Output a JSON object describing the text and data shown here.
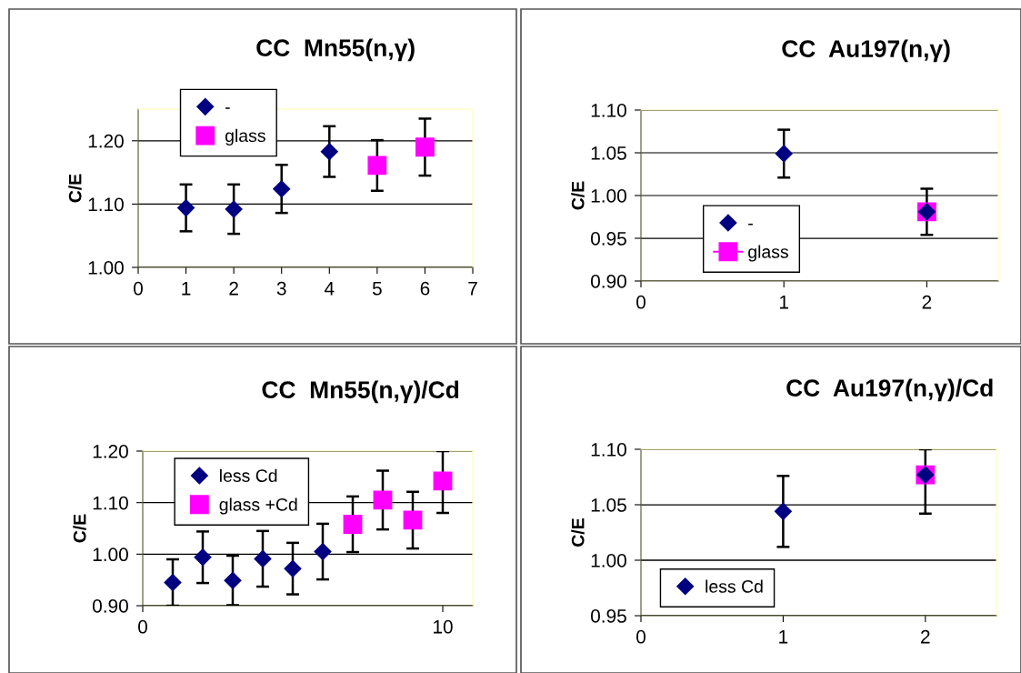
{
  "chart_data": [
    {
      "type": "scatter",
      "title": "CC  Mn55(n,γ)",
      "ylabel": "C/E",
      "xlim": [
        0,
        7
      ],
      "xticks": [
        0,
        1,
        2,
        3,
        4,
        5,
        6,
        7
      ],
      "ylim": [
        1.0,
        1.25
      ],
      "yticks": [
        {
          "value": 1.0,
          "label": "1.00"
        },
        {
          "value": 1.1,
          "label": "1.10"
        },
        {
          "value": 1.2,
          "label": "1.20"
        }
      ],
      "grid": "y",
      "legend": "top left",
      "series": [
        {
          "name": "-",
          "color": "#000080",
          "marker": "diamond",
          "x": [
            1,
            2,
            3,
            4
          ],
          "values": [
            1.094,
            1.092,
            1.124,
            1.183
          ],
          "errors": [
            0.037,
            0.039,
            0.038,
            0.04
          ]
        },
        {
          "name": "glass",
          "color": "#ff00ff",
          "marker": "square",
          "x": [
            5,
            6
          ],
          "values": [
            1.161,
            1.19
          ],
          "errors": [
            0.04,
            0.045
          ]
        }
      ]
    },
    {
      "type": "scatter",
      "title": "CC  Au197(n,γ)",
      "ylabel": "C/E",
      "xlim": [
        0,
        2.5
      ],
      "xticks": [
        0,
        1,
        2
      ],
      "ylim": [
        0.9,
        1.1
      ],
      "yticks": [
        {
          "value": 0.9,
          "label": "0.90"
        },
        {
          "value": 0.95,
          "label": "0.95"
        },
        {
          "value": 1.0,
          "label": "1.00"
        },
        {
          "value": 1.05,
          "label": "1.05"
        },
        {
          "value": 1.1,
          "label": "1.10"
        }
      ],
      "grid": "y",
      "legend": "bottom left",
      "series": [
        {
          "name": "-",
          "color": "#000080",
          "marker": "diamond",
          "x": [
            1,
            2
          ],
          "values": [
            1.049,
            0.981
          ],
          "errors": [
            0.028,
            0.027
          ]
        },
        {
          "name": "glass",
          "color": "#ff00ff",
          "marker": "square",
          "line_style": "solid",
          "x": [
            2
          ],
          "values": [
            0.981
          ]
        }
      ]
    },
    {
      "type": "scatter",
      "title": "CC  Mn55(n,γ)/Cd",
      "ylabel": "C/E",
      "xlim": [
        0,
        11
      ],
      "xticks": [
        0,
        10
      ],
      "ylim": [
        0.9,
        1.2
      ],
      "yticks": [
        {
          "value": 0.9,
          "label": "0.90"
        },
        {
          "value": 1.0,
          "label": "1.00"
        },
        {
          "value": 1.1,
          "label": "1.10"
        },
        {
          "value": 1.2,
          "label": "1.20"
        }
      ],
      "grid": "y",
      "legend": "top left",
      "series": [
        {
          "name": "less Cd",
          "color": "#000080",
          "marker": "diamond",
          "x": [
            1,
            2,
            3,
            4,
            5,
            6
          ],
          "values": [
            0.945,
            0.994,
            0.949,
            0.991,
            0.972,
            1.005
          ],
          "errors": [
            0.045,
            0.05,
            0.048,
            0.054,
            0.05,
            0.054
          ]
        },
        {
          "name": "glass +Cd",
          "color": "#ff00ff",
          "marker": "square",
          "x": [
            7,
            8,
            9,
            10
          ],
          "values": [
            1.058,
            1.105,
            1.066,
            1.142
          ],
          "errors": [
            0.054,
            0.057,
            0.055,
            [
              1.08,
              1.2
            ]
          ]
        }
      ]
    },
    {
      "type": "scatter",
      "title": "CC  Au197(n,γ)/Cd",
      "ylabel": "C/E",
      "xlim": [
        0,
        2.5
      ],
      "xticks": [
        0,
        1,
        2
      ],
      "ylim": [
        0.95,
        1.1
      ],
      "yticks": [
        {
          "value": 0.95,
          "label": "0.95"
        },
        {
          "value": 1.0,
          "label": "1.00"
        },
        {
          "value": 1.05,
          "label": "1.05"
        },
        {
          "value": 1.1,
          "label": "1.10"
        }
      ],
      "grid": "y",
      "legend": "bottom left",
      "series": [
        {
          "color": "#ff00ff",
          "marker": "square",
          "x": [
            2
          ],
          "values": [
            1.077
          ]
        },
        {
          "name": "less Cd",
          "color": "#000080",
          "marker": "diamond",
          "x": [
            1,
            2
          ],
          "values": [
            1.044,
            1.077
          ],
          "errors": [
            0.032,
            [
              1.042,
              1.1
            ]
          ]
        }
      ]
    }
  ]
}
